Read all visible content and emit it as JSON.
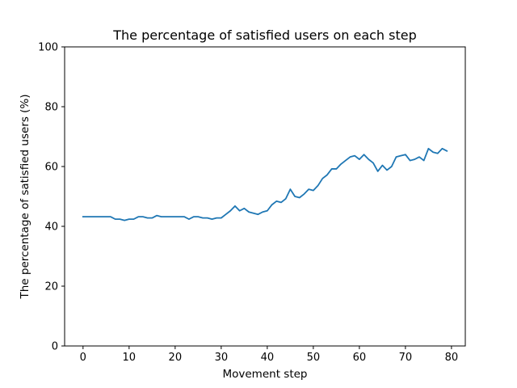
{
  "chart_data": {
    "type": "line",
    "title": "The percentage of satisfied users on each step",
    "xlabel": "Movement step",
    "ylabel": "The percentage of satisfied users (%)",
    "xlim": [
      -4,
      83
    ],
    "ylim": [
      0,
      100
    ],
    "xticks": [
      0,
      10,
      20,
      30,
      40,
      50,
      60,
      70,
      80
    ],
    "yticks": [
      0,
      20,
      40,
      60,
      80,
      100
    ],
    "grid": false,
    "colors": {
      "line": "#1f77b4"
    },
    "series": [
      {
        "x": [
          0,
          1,
          2,
          3,
          4,
          5,
          6,
          7,
          8,
          9,
          10,
          11,
          12,
          13,
          14,
          15,
          16,
          17,
          18,
          19,
          20,
          21,
          22,
          23,
          24,
          25,
          26,
          27,
          28,
          29,
          30,
          31,
          32,
          33,
          34,
          35,
          36,
          37,
          38,
          39,
          40,
          41,
          42,
          43,
          44,
          45,
          46,
          47,
          48,
          49,
          50,
          51,
          52,
          53,
          54,
          55,
          56,
          57,
          58,
          59,
          60,
          61,
          62,
          63,
          64,
          65,
          66,
          67,
          68,
          69,
          70,
          71,
          72,
          73,
          74,
          75,
          76,
          77,
          78,
          79
        ],
        "y": [
          43.2,
          43.2,
          43.2,
          43.2,
          43.2,
          43.2,
          43.2,
          42.4,
          42.4,
          42.0,
          42.4,
          42.4,
          43.2,
          43.2,
          42.8,
          42.8,
          43.6,
          43.2,
          43.2,
          43.2,
          43.2,
          43.2,
          43.2,
          42.4,
          43.2,
          43.2,
          42.8,
          42.8,
          42.4,
          42.8,
          42.8,
          44.0,
          45.2,
          46.8,
          45.2,
          46.0,
          44.8,
          44.4,
          44.0,
          44.8,
          45.2,
          47.2,
          48.4,
          48.0,
          49.2,
          52.4,
          50.0,
          49.6,
          50.8,
          52.4,
          52.0,
          53.6,
          56.0,
          57.2,
          59.2,
          59.2,
          60.8,
          62.0,
          63.2,
          63.6,
          62.4,
          64.0,
          62.4,
          61.2,
          58.4,
          60.4,
          58.8,
          60.0,
          63.2,
          63.6,
          64.0,
          62.0,
          62.4,
          63.2,
          62.0,
          66.0,
          64.8,
          64.4,
          66.0,
          65.2
        ]
      }
    ]
  }
}
